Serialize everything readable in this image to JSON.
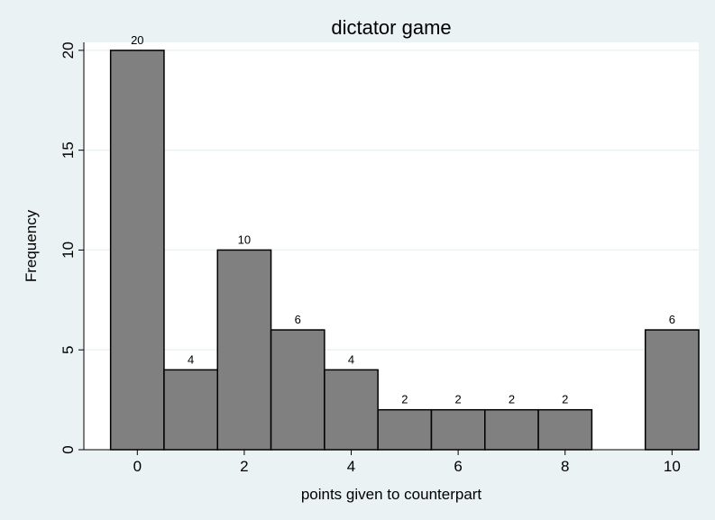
{
  "chart_data": {
    "type": "bar",
    "title": "dictator game",
    "xlabel": "points given to counterpart",
    "ylabel": "Frequency",
    "x": [
      0,
      1,
      2,
      3,
      4,
      5,
      6,
      7,
      8,
      10
    ],
    "values": [
      20,
      4,
      10,
      6,
      4,
      2,
      2,
      2,
      2,
      6
    ],
    "data_labels": [
      "20",
      "4",
      "10",
      "6",
      "4",
      "2",
      "2",
      "2",
      "2",
      "6"
    ],
    "xlim": [
      -1,
      10.5
    ],
    "ylim": [
      0,
      20.4
    ],
    "x_ticks": [
      0,
      2,
      4,
      6,
      8,
      10
    ],
    "x_tick_labels": [
      "0",
      "2",
      "4",
      "6",
      "8",
      "10"
    ],
    "y_ticks": [
      0,
      5,
      10,
      15,
      20
    ],
    "y_tick_labels": [
      "0",
      "5",
      "10",
      "15",
      "20"
    ],
    "grid": true,
    "colors": {
      "bar": "#808080",
      "plot_bg": "#ffffff",
      "page_bg": "#eaf2f3",
      "grid": "#eaf2f3"
    }
  }
}
